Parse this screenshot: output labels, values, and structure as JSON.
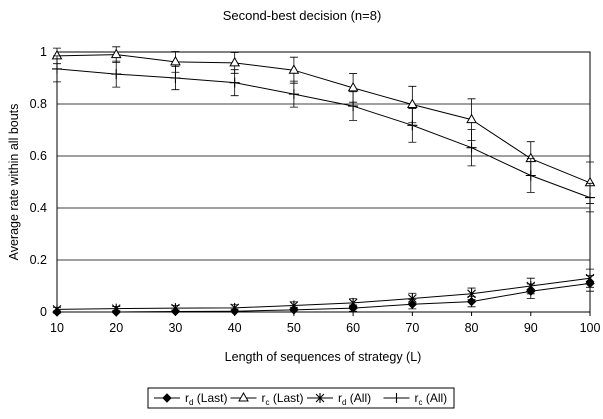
{
  "chart_data": {
    "type": "line",
    "title": "Second-best decision (n=8)",
    "xlabel": "Length of sequences of strategy (L)",
    "ylabel": "Average rate within all bouts",
    "x": [
      10,
      20,
      30,
      40,
      50,
      60,
      70,
      80,
      90,
      100
    ],
    "xlim": [
      10,
      100
    ],
    "ylim": [
      0,
      1
    ],
    "yticks": [
      0,
      0.2,
      0.4,
      0.6,
      0.8,
      1
    ],
    "ytick_labels": [
      "0",
      "0.2",
      "0.4",
      "0.6",
      "0.8",
      "1"
    ],
    "xtick_labels": [
      "10",
      "20",
      "30",
      "40",
      "50",
      "60",
      "70",
      "80",
      "90",
      "100"
    ],
    "grid": "horizontal",
    "legend_position": "bottom",
    "series": [
      {
        "name": "rd (Last)",
        "main": "r",
        "sub": "d",
        "qual": "(Last)",
        "marker": "diamond",
        "color": "#000000",
        "values": [
          0.0,
          0.0,
          0.002,
          0.003,
          0.008,
          0.015,
          0.03,
          0.04,
          0.08,
          0.11
        ],
        "err": [
          0.004,
          0.004,
          0.006,
          0.008,
          0.01,
          0.012,
          0.018,
          0.02,
          0.028,
          0.03
        ]
      },
      {
        "name": "rc (Last)",
        "main": "r",
        "sub": "c",
        "qual": "(Last)",
        "marker": "triangle",
        "color": "#000000",
        "values": [
          0.985,
          0.99,
          0.962,
          0.958,
          0.93,
          0.862,
          0.798,
          0.74,
          0.59,
          0.497
        ],
        "err": [
          0.03,
          0.03,
          0.04,
          0.04,
          0.05,
          0.055,
          0.07,
          0.08,
          0.065,
          0.08
        ]
      },
      {
        "name": "rd (All)",
        "main": "r",
        "sub": "d",
        "qual": "(All)",
        "marker": "asterisk",
        "color": "#000000",
        "values": [
          0.01,
          0.013,
          0.015,
          0.016,
          0.025,
          0.035,
          0.052,
          0.07,
          0.1,
          0.13
        ],
        "err": [
          0.008,
          0.008,
          0.01,
          0.012,
          0.014,
          0.016,
          0.02,
          0.022,
          0.03,
          0.035
        ]
      },
      {
        "name": "rc (All)",
        "main": "r",
        "sub": "c",
        "qual": "(All)",
        "marker": "plus",
        "color": "#000000",
        "values": [
          0.935,
          0.915,
          0.9,
          0.882,
          0.838,
          0.792,
          0.718,
          0.632,
          0.525,
          0.44
        ],
        "err": [
          0.05,
          0.05,
          0.045,
          0.05,
          0.05,
          0.055,
          0.065,
          0.07,
          0.065,
          0.055
        ]
      }
    ]
  }
}
